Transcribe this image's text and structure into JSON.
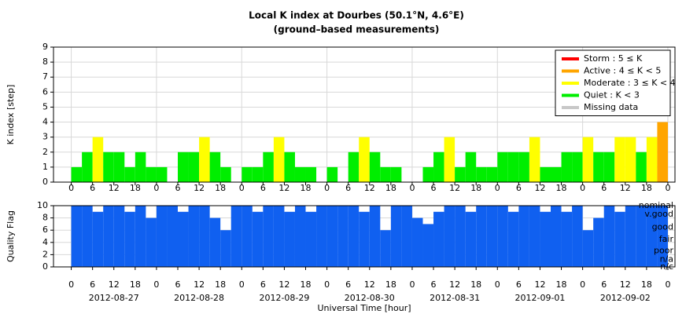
{
  "chart_data": [
    {
      "type": "bar",
      "title": "Local K index at Dourbes (50.1°N, 4.6°E)",
      "subtitle": "(ground–based measurements)",
      "y_label": "K index [step]",
      "x": [
        0,
        3,
        6,
        9,
        12,
        15,
        18,
        21,
        24,
        27,
        30,
        33,
        36,
        39,
        42,
        45,
        48,
        51,
        54,
        57,
        60,
        63,
        66,
        69,
        72,
        75,
        78,
        81,
        84,
        87,
        90,
        93,
        96,
        99,
        102,
        105,
        108,
        111,
        114,
        117,
        120,
        123,
        126,
        129,
        132,
        135,
        138,
        141,
        144,
        147,
        150,
        153,
        156,
        159,
        162,
        165
      ],
      "values": [
        1,
        2,
        3,
        2,
        2,
        1,
        2,
        1,
        1,
        0,
        2,
        2,
        3,
        2,
        1,
        0,
        1,
        1,
        2,
        3,
        2,
        1,
        1,
        0,
        1,
        0,
        2,
        3,
        2,
        1,
        1,
        0,
        0,
        1,
        2,
        3,
        1,
        2,
        1,
        1,
        2,
        2,
        2,
        3,
        1,
        1,
        2,
        2,
        3,
        2,
        2,
        3,
        3,
        2,
        3,
        4
      ],
      "colors": [
        "#00ee00",
        "#00ee00",
        "#ffff00",
        "#00ee00",
        "#00ee00",
        "#00ee00",
        "#00ee00",
        "#00ee00",
        "#00ee00",
        "#00ee00",
        "#00ee00",
        "#00ee00",
        "#ffff00",
        "#00ee00",
        "#00ee00",
        "#00ee00",
        "#00ee00",
        "#00ee00",
        "#00ee00",
        "#ffff00",
        "#00ee00",
        "#00ee00",
        "#00ee00",
        "#00ee00",
        "#00ee00",
        "#00ee00",
        "#00ee00",
        "#ffff00",
        "#00ee00",
        "#00ee00",
        "#00ee00",
        "#00ee00",
        "#00ee00",
        "#00ee00",
        "#00ee00",
        "#ffff00",
        "#00ee00",
        "#00ee00",
        "#00ee00",
        "#00ee00",
        "#00ee00",
        "#00ee00",
        "#00ee00",
        "#ffff00",
        "#00ee00",
        "#00ee00",
        "#00ee00",
        "#00ee00",
        "#ffff00",
        "#00ee00",
        "#00ee00",
        "#ffff00",
        "#ffff00",
        "#00ee00",
        "#ffff00",
        "#ffa500"
      ],
      "xlim": [
        -5,
        170
      ],
      "xticks": [
        {
          "value": 0,
          "label": "0"
        },
        {
          "value": 6,
          "label": "6"
        },
        {
          "value": 12,
          "label": "12"
        },
        {
          "value": 18,
          "label": "18"
        },
        {
          "value": 24,
          "label": "0"
        },
        {
          "value": 30,
          "label": "6"
        },
        {
          "value": 36,
          "label": "12"
        },
        {
          "value": 42,
          "label": "18"
        },
        {
          "value": 48,
          "label": "0"
        },
        {
          "value": 54,
          "label": "6"
        },
        {
          "value": 60,
          "label": "12"
        },
        {
          "value": 66,
          "label": "18"
        },
        {
          "value": 72,
          "label": "0"
        },
        {
          "value": 78,
          "label": "6"
        },
        {
          "value": 84,
          "label": "12"
        },
        {
          "value": 90,
          "label": "18"
        },
        {
          "value": 96,
          "label": "0"
        },
        {
          "value": 102,
          "label": "6"
        },
        {
          "value": 108,
          "label": "12"
        },
        {
          "value": 114,
          "label": "18"
        },
        {
          "value": 120,
          "label": "0"
        },
        {
          "value": 126,
          "label": "6"
        },
        {
          "value": 132,
          "label": "12"
        },
        {
          "value": 138,
          "label": "18"
        },
        {
          "value": 144,
          "label": "0"
        },
        {
          "value": 150,
          "label": "6"
        },
        {
          "value": 156,
          "label": "12"
        },
        {
          "value": 162,
          "label": "18"
        },
        {
          "value": 168,
          "label": "0"
        }
      ],
      "ylim": [
        0,
        9
      ],
      "yticks": [
        0,
        1,
        2,
        3,
        4,
        5,
        6,
        7,
        8,
        9
      ],
      "grid": true,
      "legend": {
        "corner": "upper right",
        "items": [
          {
            "name": "Storm : 5 ≤ K",
            "color": "#ff0000"
          },
          {
            "name": "Active : 4 ≤ K < 5",
            "color": "#ffa500"
          },
          {
            "name": "Moderate : 3 ≤ K < 4",
            "color": "#ffff00"
          },
          {
            "name": "Quiet : K < 3",
            "color": "#00ee00"
          },
          {
            "name": "Missing data",
            "color": "#c8c8c8"
          }
        ]
      }
    },
    {
      "type": "bar",
      "y_label": "Quality Flag",
      "x_label": "Universal Time [hour]",
      "x": [
        0,
        3,
        6,
        9,
        12,
        15,
        18,
        21,
        24,
        27,
        30,
        33,
        36,
        39,
        42,
        45,
        48,
        51,
        54,
        57,
        60,
        63,
        66,
        69,
        72,
        75,
        78,
        81,
        84,
        87,
        90,
        93,
        96,
        99,
        102,
        105,
        108,
        111,
        114,
        117,
        120,
        123,
        126,
        129,
        132,
        135,
        138,
        141,
        144,
        147,
        150,
        153,
        156,
        159,
        162,
        165
      ],
      "values": [
        10,
        10,
        9,
        10,
        10,
        9,
        10,
        8,
        10,
        10,
        9,
        10,
        10,
        8,
        6,
        10,
        10,
        9,
        10,
        10,
        9,
        10,
        9,
        10,
        10,
        10,
        10,
        9,
        10,
        6,
        10,
        10,
        8,
        7,
        9,
        10,
        10,
        9,
        10,
        10,
        10,
        9,
        10,
        10,
        9,
        10,
        9,
        10,
        6,
        8,
        10,
        9,
        10,
        10,
        10,
        10
      ],
      "color": "#1060f0",
      "xlim": [
        -5,
        170
      ],
      "xticks": [
        {
          "value": 0,
          "label": "0"
        },
        {
          "value": 6,
          "label": "6"
        },
        {
          "value": 12,
          "label": "12"
        },
        {
          "value": 18,
          "label": "18"
        },
        {
          "value": 24,
          "label": "0"
        },
        {
          "value": 30,
          "label": "6"
        },
        {
          "value": 36,
          "label": "12"
        },
        {
          "value": 42,
          "label": "18"
        },
        {
          "value": 48,
          "label": "0"
        },
        {
          "value": 54,
          "label": "6"
        },
        {
          "value": 60,
          "label": "12"
        },
        {
          "value": 66,
          "label": "18"
        },
        {
          "value": 72,
          "label": "0"
        },
        {
          "value": 78,
          "label": "6"
        },
        {
          "value": 84,
          "label": "12"
        },
        {
          "value": 90,
          "label": "18"
        },
        {
          "value": 96,
          "label": "0"
        },
        {
          "value": 102,
          "label": "6"
        },
        {
          "value": 108,
          "label": "12"
        },
        {
          "value": 114,
          "label": "18"
        },
        {
          "value": 120,
          "label": "0"
        },
        {
          "value": 126,
          "label": "6"
        },
        {
          "value": 132,
          "label": "12"
        },
        {
          "value": 138,
          "label": "18"
        },
        {
          "value": 144,
          "label": "0"
        },
        {
          "value": 150,
          "label": "6"
        },
        {
          "value": 156,
          "label": "12"
        },
        {
          "value": 162,
          "label": "18"
        },
        {
          "value": 168,
          "label": "0"
        }
      ],
      "date_ticks": [
        {
          "value": 12,
          "label": "2012-08-27"
        },
        {
          "value": 36,
          "label": "2012-08-28"
        },
        {
          "value": 60,
          "label": "2012-08-29"
        },
        {
          "value": 84,
          "label": "2012-08-30"
        },
        {
          "value": 108,
          "label": "2012-08-31"
        },
        {
          "value": 132,
          "label": "2012-09-01"
        },
        {
          "value": 156,
          "label": "2012-09-02"
        }
      ],
      "ylim": [
        0,
        10
      ],
      "yticks": [
        0,
        2,
        4,
        6,
        8,
        10
      ],
      "y2lim": [
        0,
        10
      ],
      "y2ticks": [
        {
          "value": 10,
          "label": "nominal"
        },
        {
          "value": 8.6,
          "label": "v.good"
        },
        {
          "value": 6.5,
          "label": "good"
        },
        {
          "value": 4.5,
          "label": "fair"
        },
        {
          "value": 2.6,
          "label": "poor"
        },
        {
          "value": 1.2,
          "label": "n/a"
        },
        {
          "value": 0,
          "label": "n/c"
        }
      ],
      "grid": true
    }
  ]
}
